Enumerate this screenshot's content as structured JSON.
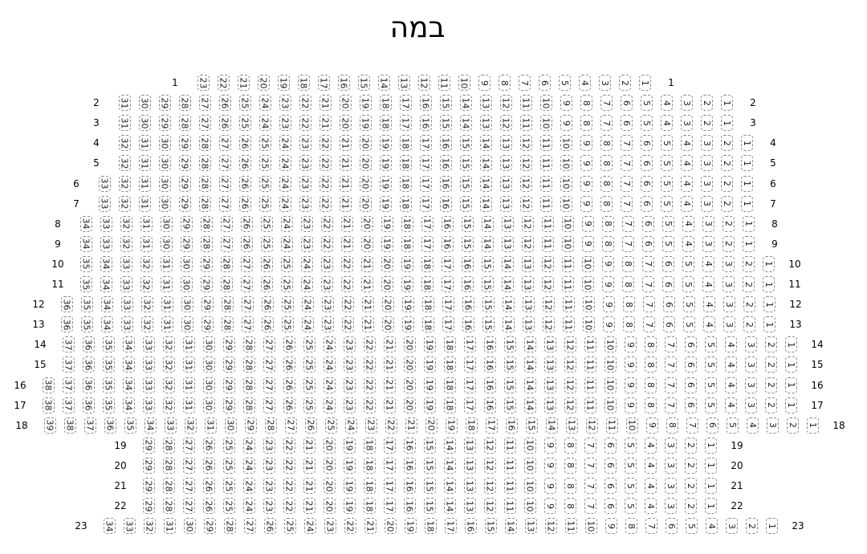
{
  "title": "במה",
  "seat_border_color": "#888888",
  "rows": [
    {
      "row": "1",
      "seats": 23
    },
    {
      "row": "2",
      "seats": 31
    },
    {
      "row": "3",
      "seats": 31
    },
    {
      "row": "4",
      "seats": 32
    },
    {
      "row": "5",
      "seats": 32
    },
    {
      "row": "6",
      "seats": 33
    },
    {
      "row": "7",
      "seats": 33
    },
    {
      "row": "8",
      "seats": 34
    },
    {
      "row": "9",
      "seats": 34
    },
    {
      "row": "10",
      "seats": 35
    },
    {
      "row": "11",
      "seats": 35
    },
    {
      "row": "12",
      "seats": 36
    },
    {
      "row": "13",
      "seats": 36
    },
    {
      "row": "14",
      "seats": 37
    },
    {
      "row": "15",
      "seats": 37
    },
    {
      "row": "16",
      "seats": 38
    },
    {
      "row": "17",
      "seats": 38
    },
    {
      "row": "18",
      "seats": 39
    },
    {
      "row": "19",
      "seats": 29
    },
    {
      "row": "20",
      "seats": 29
    },
    {
      "row": "21",
      "seats": 29
    },
    {
      "row": "22",
      "seats": 29
    },
    {
      "row": "23",
      "seats": 34
    }
  ]
}
